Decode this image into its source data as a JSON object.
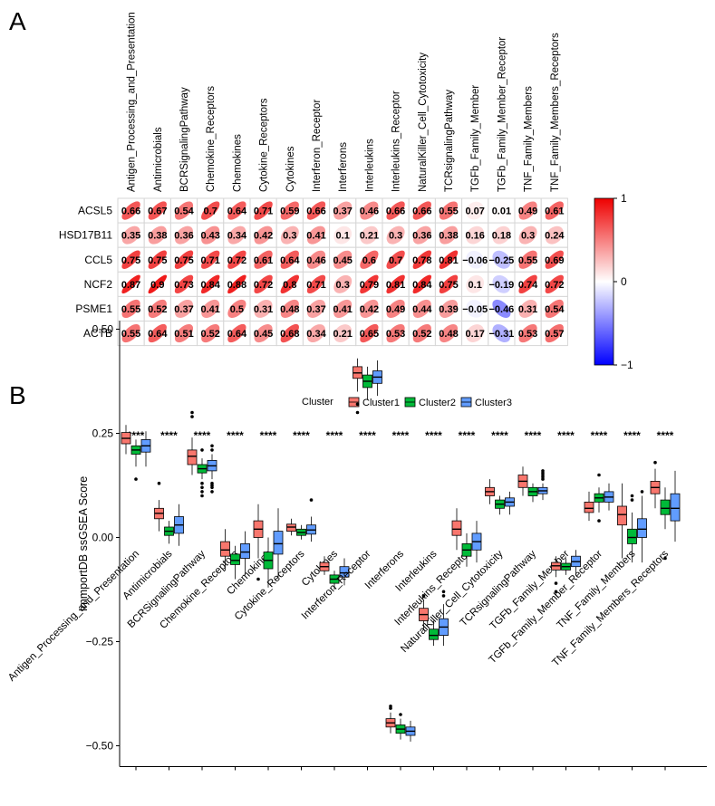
{
  "panels": {
    "a": "A",
    "b": "B"
  },
  "chart_data": [
    {
      "type": "heatmap",
      "style": "correlation ellipses",
      "columns": [
        "Antigen_Processing_and_Presentation",
        "Antimicrobials",
        "BCRSignalingPathway",
        "Chemokine_Receptors",
        "Chemokines",
        "Cytokine_Receptors",
        "Cytokines",
        "Interferon_Receptor",
        "Interferons",
        "Interleukins",
        "Interleukins_Receptor",
        "NaturalKiller_Cell_Cytotoxicity",
        "TCRsignalingPathway",
        "TGFb_Family_Member",
        "TGFb_Family_Member_Receptor",
        "TNF_Family_Members",
        "TNF_Family_Members_Receptors"
      ],
      "rows": [
        "ACSL5",
        "HSD17B11",
        "CCL5",
        "NCF2",
        "PSME1",
        "ACTB"
      ],
      "values": [
        [
          0.66,
          0.67,
          0.54,
          0.7,
          0.64,
          0.71,
          0.59,
          0.66,
          0.37,
          0.46,
          0.66,
          0.66,
          0.55,
          0.07,
          0.01,
          0.49,
          0.61
        ],
        [
          0.35,
          0.38,
          0.36,
          0.43,
          0.34,
          0.42,
          0.3,
          0.41,
          0.1,
          0.21,
          0.3,
          0.36,
          0.38,
          0.16,
          0.18,
          0.3,
          0.24
        ],
        [
          0.75,
          0.75,
          0.75,
          0.71,
          0.72,
          0.61,
          0.64,
          0.46,
          0.45,
          0.6,
          0.7,
          0.78,
          0.81,
          -0.06,
          -0.25,
          0.55,
          0.69
        ],
        [
          0.87,
          0.9,
          0.73,
          0.84,
          0.88,
          0.72,
          0.8,
          0.71,
          0.3,
          0.79,
          0.81,
          0.84,
          0.75,
          0.1,
          -0.19,
          0.74,
          0.72
        ],
        [
          0.55,
          0.52,
          0.37,
          0.41,
          0.5,
          0.31,
          0.48,
          0.37,
          0.41,
          0.42,
          0.49,
          0.44,
          0.39,
          -0.05,
          -0.46,
          0.31,
          0.54
        ],
        [
          0.55,
          0.64,
          0.51,
          0.52,
          0.64,
          0.45,
          0.68,
          0.34,
          0.21,
          0.65,
          0.53,
          0.52,
          0.48,
          0.17,
          -0.31,
          0.53,
          0.57
        ]
      ],
      "value_labels": [
        [
          "0.66",
          "0.67",
          "0.54",
          "0.7",
          "0.64",
          "0.71",
          "0.59",
          "0.66",
          "0.37",
          "0.46",
          "0.66",
          "0.66",
          "0.55",
          "0.07",
          "0.01",
          "0.49",
          "0.61"
        ],
        [
          "0.35",
          "0.38",
          "0.36",
          "0.43",
          "0.34",
          "0.42",
          "0.3",
          "0.41",
          "0.1",
          "0.21",
          "0.3",
          "0.36",
          "0.38",
          "0.16",
          "0.18",
          "0.3",
          "0.24"
        ],
        [
          "0.75",
          "0.75",
          "0.75",
          "0.71",
          "0.72",
          "0.61",
          "0.64",
          "0.46",
          "0.45",
          "0.6",
          "0.7",
          "0.78",
          "0.81",
          "−0.06",
          "−0.25",
          "0.55",
          "0.69"
        ],
        [
          "0.87",
          "0.9",
          "0.73",
          "0.84",
          "0.88",
          "0.72",
          "0.8",
          "0.71",
          "0.3",
          "0.79",
          "0.81",
          "0.84",
          "0.75",
          "0.1",
          "−0.19",
          "0.74",
          "0.72"
        ],
        [
          "0.55",
          "0.52",
          "0.37",
          "0.41",
          "0.5",
          "0.31",
          "0.48",
          "0.37",
          "0.41",
          "0.42",
          "0.49",
          "0.44",
          "0.39",
          "−0.05",
          "−0.46",
          "0.31",
          "0.54"
        ],
        [
          "0.55",
          "0.64",
          "0.51",
          "0.52",
          "0.64",
          "0.45",
          "0.68",
          "0.34",
          "0.21",
          "0.65",
          "0.53",
          "0.52",
          "0.48",
          "0.17",
          "−0.31",
          "0.53",
          "0.57"
        ]
      ],
      "colorbar": {
        "range": [
          -1,
          1
        ],
        "ticks": [
          1,
          0,
          -1
        ],
        "tick_labels": [
          "1",
          "0",
          "−1"
        ],
        "low": "#0000ff",
        "mid": "#ffffff",
        "high": "#ee0000"
      }
    },
    {
      "type": "boxplot",
      "legend": {
        "title": "Cluster",
        "entries": [
          "Cluster1",
          "Cluster2",
          "Cluster3"
        ],
        "colors": [
          "#f8766d",
          "#00ba38",
          "#619cff"
        ],
        "position": "top"
      },
      "ylabel": "ImmportDB ssGSEA Score",
      "xlabel": "",
      "ylim": [
        -0.55,
        0.52
      ],
      "yticks": [
        0.5,
        0.25,
        0.0,
        -0.25,
        -0.5
      ],
      "ytick_labels": [
        "0.50",
        "0.25",
        "0.00",
        "−0.25",
        "−0.50"
      ],
      "significance": "****",
      "categories": [
        "Antigen_Processing_and_Presentation",
        "Antimicrobials",
        "BCRSignalingPathway",
        "Chemokine_Receptors",
        "Chemokines",
        "Cytokine_Receptors",
        "Cytokines",
        "Interferon_Receptor",
        "Interferons",
        "Interleukins",
        "Interleukins_Receptor",
        "NaturalKiller_Cell_Cytotoxicity",
        "TCRsignalingPathway",
        "TGFb_Family_Member",
        "TGFb_Family_Member_Receptor",
        "TNF_Family_Members",
        "TNF_Family_Members_Receptors"
      ],
      "series": [
        {
          "name": "Cluster1",
          "boxes": [
            {
              "q1": 0.225,
              "median": 0.238,
              "q3": 0.252,
              "wlo": 0.2,
              "whi": 0.27,
              "outliers": []
            },
            {
              "q1": 0.045,
              "median": 0.058,
              "q3": 0.07,
              "wlo": 0.015,
              "whi": 0.09,
              "outliers": [
                0.13
              ]
            },
            {
              "q1": 0.175,
              "median": 0.195,
              "q3": 0.21,
              "wlo": 0.15,
              "whi": 0.24,
              "outliers": [
                0.29,
                0.3
              ]
            },
            {
              "q1": -0.045,
              "median": -0.03,
              "q3": -0.01,
              "wlo": -0.08,
              "whi": 0.02,
              "outliers": []
            },
            {
              "q1": 0.0,
              "median": 0.02,
              "q3": 0.04,
              "wlo": -0.05,
              "whi": 0.08,
              "outliers": [
                -0.1
              ]
            },
            {
              "q1": 0.015,
              "median": 0.025,
              "q3": 0.032,
              "wlo": 0.005,
              "whi": 0.045,
              "outliers": []
            },
            {
              "q1": -0.08,
              "median": -0.07,
              "q3": -0.06,
              "wlo": -0.09,
              "whi": -0.045,
              "outliers": []
            },
            {
              "q1": 0.382,
              "median": 0.395,
              "q3": 0.41,
              "wlo": 0.35,
              "whi": 0.43,
              "outliers": [
                0.3,
                0.32
              ]
            },
            {
              "q1": -0.455,
              "median": -0.445,
              "q3": -0.435,
              "wlo": -0.47,
              "whi": -0.42,
              "outliers": [
                -0.41,
                -0.405
              ]
            },
            {
              "q1": -0.2,
              "median": -0.185,
              "q3": -0.17,
              "wlo": -0.22,
              "whi": -0.15,
              "outliers": [
                -0.14
              ]
            },
            {
              "q1": 0.005,
              "median": 0.02,
              "q3": 0.04,
              "wlo": -0.03,
              "whi": 0.07,
              "outliers": []
            },
            {
              "q1": 0.1,
              "median": 0.11,
              "q3": 0.12,
              "wlo": 0.08,
              "whi": 0.14,
              "outliers": []
            },
            {
              "q1": 0.12,
              "median": 0.135,
              "q3": 0.15,
              "wlo": 0.1,
              "whi": 0.17,
              "outliers": []
            },
            {
              "q1": -0.078,
              "median": -0.068,
              "q3": -0.06,
              "wlo": -0.095,
              "whi": -0.045,
              "outliers": [
                -0.11,
                -0.13
              ]
            },
            {
              "q1": 0.06,
              "median": 0.07,
              "q3": 0.085,
              "wlo": 0.04,
              "whi": 0.11,
              "outliers": []
            },
            {
              "q1": 0.03,
              "median": 0.055,
              "q3": 0.075,
              "wlo": -0.05,
              "whi": 0.13,
              "outliers": []
            },
            {
              "q1": 0.105,
              "median": 0.12,
              "q3": 0.135,
              "wlo": 0.07,
              "whi": 0.165,
              "outliers": [
                0.18
              ]
            }
          ]
        },
        {
          "name": "Cluster2",
          "boxes": [
            {
              "q1": 0.2,
              "median": 0.21,
              "q3": 0.22,
              "wlo": 0.17,
              "whi": 0.235,
              "outliers": [
                0.14
              ]
            },
            {
              "q1": 0.005,
              "median": 0.015,
              "q3": 0.025,
              "wlo": -0.015,
              "whi": 0.04,
              "outliers": []
            },
            {
              "q1": 0.155,
              "median": 0.165,
              "q3": 0.175,
              "wlo": 0.14,
              "whi": 0.19,
              "outliers": [
                0.1,
                0.11,
                0.12,
                0.13,
                0.21
              ]
            },
            {
              "q1": -0.065,
              "median": -0.055,
              "q3": -0.04,
              "wlo": -0.1,
              "whi": -0.02,
              "outliers": []
            },
            {
              "q1": -0.075,
              "median": -0.055,
              "q3": -0.035,
              "wlo": -0.12,
              "whi": 0.0,
              "outliers": []
            },
            {
              "q1": 0.005,
              "median": 0.012,
              "q3": 0.02,
              "wlo": -0.005,
              "whi": 0.03,
              "outliers": []
            },
            {
              "q1": -0.11,
              "median": -0.1,
              "q3": -0.09,
              "wlo": -0.125,
              "whi": -0.08,
              "outliers": []
            },
            {
              "q1": 0.36,
              "median": 0.375,
              "q3": 0.39,
              "wlo": 0.33,
              "whi": 0.41,
              "outliers": []
            },
            {
              "q1": -0.47,
              "median": -0.46,
              "q3": -0.45,
              "wlo": -0.485,
              "whi": -0.435,
              "outliers": [
                -0.425
              ]
            },
            {
              "q1": -0.245,
              "median": -0.235,
              "q3": -0.22,
              "wlo": -0.26,
              "whi": -0.2,
              "outliers": []
            },
            {
              "q1": -0.045,
              "median": -0.03,
              "q3": -0.015,
              "wlo": -0.07,
              "whi": 0.01,
              "outliers": []
            },
            {
              "q1": 0.07,
              "median": 0.08,
              "q3": 0.09,
              "wlo": 0.055,
              "whi": 0.1,
              "outliers": []
            },
            {
              "q1": 0.1,
              "median": 0.11,
              "q3": 0.12,
              "wlo": 0.085,
              "whi": 0.13,
              "outliers": []
            },
            {
              "q1": -0.078,
              "median": -0.07,
              "q3": -0.062,
              "wlo": -0.09,
              "whi": -0.05,
              "outliers": []
            },
            {
              "q1": 0.085,
              "median": 0.095,
              "q3": 0.105,
              "wlo": 0.06,
              "whi": 0.12,
              "outliers": [
                0.15,
                0.04
              ]
            },
            {
              "q1": -0.015,
              "median": 0.0,
              "q3": 0.02,
              "wlo": -0.06,
              "whi": 0.06,
              "outliers": [
                0.09,
                0.1
              ]
            },
            {
              "q1": 0.055,
              "median": 0.07,
              "q3": 0.09,
              "wlo": 0.02,
              "whi": 0.12,
              "outliers": [
                -0.05
              ]
            }
          ]
        },
        {
          "name": "Cluster3",
          "boxes": [
            {
              "q1": 0.205,
              "median": 0.22,
              "q3": 0.235,
              "wlo": 0.17,
              "whi": 0.255,
              "outliers": []
            },
            {
              "q1": 0.01,
              "median": 0.03,
              "q3": 0.05,
              "wlo": -0.02,
              "whi": 0.08,
              "outliers": []
            },
            {
              "q1": 0.16,
              "median": 0.172,
              "q3": 0.185,
              "wlo": 0.14,
              "whi": 0.2,
              "outliers": [
                0.11,
                0.12,
                0.125,
                0.13,
                0.21,
                0.22
              ]
            },
            {
              "q1": -0.05,
              "median": -0.035,
              "q3": -0.015,
              "wlo": -0.09,
              "whi": 0.015,
              "outliers": []
            },
            {
              "q1": -0.04,
              "median": -0.015,
              "q3": 0.015,
              "wlo": -0.1,
              "whi": 0.07,
              "outliers": []
            },
            {
              "q1": 0.008,
              "median": 0.018,
              "q3": 0.03,
              "wlo": -0.01,
              "whi": 0.05,
              "outliers": [
                0.09
              ]
            },
            {
              "q1": -0.095,
              "median": -0.085,
              "q3": -0.07,
              "wlo": -0.115,
              "whi": -0.05,
              "outliers": []
            },
            {
              "q1": 0.37,
              "median": 0.385,
              "q3": 0.4,
              "wlo": 0.34,
              "whi": 0.425,
              "outliers": []
            },
            {
              "q1": -0.475,
              "median": -0.465,
              "q3": -0.455,
              "wlo": -0.49,
              "whi": -0.44,
              "outliers": []
            },
            {
              "q1": -0.235,
              "median": -0.215,
              "q3": -0.195,
              "wlo": -0.26,
              "whi": -0.16,
              "outliers": [
                -0.14,
                -0.13
              ]
            },
            {
              "q1": -0.03,
              "median": -0.01,
              "q3": 0.01,
              "wlo": -0.06,
              "whi": 0.04,
              "outliers": []
            },
            {
              "q1": 0.075,
              "median": 0.085,
              "q3": 0.095,
              "wlo": 0.055,
              "whi": 0.11,
              "outliers": []
            },
            {
              "q1": 0.105,
              "median": 0.112,
              "q3": 0.12,
              "wlo": 0.09,
              "whi": 0.13,
              "outliers": [
                0.14,
                0.145,
                0.15,
                0.155,
                0.16
              ]
            },
            {
              "q1": -0.07,
              "median": -0.058,
              "q3": -0.045,
              "wlo": -0.09,
              "whi": -0.03,
              "outliers": []
            },
            {
              "q1": 0.085,
              "median": 0.097,
              "q3": 0.11,
              "wlo": 0.065,
              "whi": 0.13,
              "outliers": []
            },
            {
              "q1": 0.0,
              "median": 0.02,
              "q3": 0.045,
              "wlo": -0.06,
              "whi": 0.1,
              "outliers": [
                0.11
              ]
            },
            {
              "q1": 0.04,
              "median": 0.07,
              "q3": 0.105,
              "wlo": -0.01,
              "whi": 0.16,
              "outliers": []
            }
          ]
        }
      ]
    }
  ]
}
